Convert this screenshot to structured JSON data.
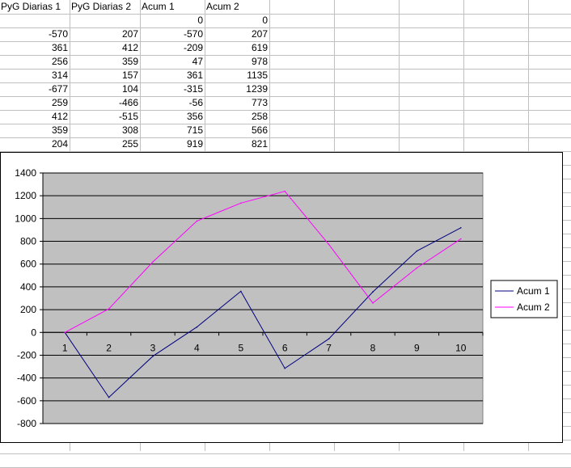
{
  "sheet": {
    "headers": [
      "PyG Diarias 1",
      "PyG Diarias 2",
      "Acum 1",
      "Acum 2"
    ],
    "rows": [
      [
        "",
        "",
        "0",
        "0"
      ],
      [
        "-570",
        "207",
        "-570",
        "207"
      ],
      [
        "361",
        "412",
        "-209",
        "619"
      ],
      [
        "256",
        "359",
        "47",
        "978"
      ],
      [
        "314",
        "157",
        "361",
        "1135"
      ],
      [
        "-677",
        "104",
        "-315",
        "1239"
      ],
      [
        "259",
        "-466",
        "-56",
        "773"
      ],
      [
        "412",
        "-515",
        "356",
        "258"
      ],
      [
        "359",
        "308",
        "715",
        "566"
      ],
      [
        "204",
        "255",
        "919",
        "821"
      ]
    ]
  },
  "chart_data": {
    "type": "line",
    "categories": [
      "1",
      "2",
      "3",
      "4",
      "5",
      "6",
      "7",
      "8",
      "9",
      "10"
    ],
    "series": [
      {
        "name": "Acum 1",
        "color": "#000080",
        "values": [
          0,
          -570,
          -209,
          47,
          361,
          -315,
          -56,
          356,
          715,
          919
        ]
      },
      {
        "name": "Acum 2",
        "color": "#ff00ff",
        "values": [
          0,
          207,
          619,
          978,
          1135,
          1239,
          773,
          258,
          566,
          821
        ]
      }
    ],
    "ylim": [
      -800,
      1400
    ],
    "ytick_step": 200,
    "yticks": [
      "1400",
      "1200",
      "1000",
      "800",
      "600",
      "400",
      "200",
      "0",
      "-200",
      "-400",
      "-600",
      "-800"
    ],
    "plot_background": "#c0c0c0",
    "grid": true,
    "legend_position": "right",
    "title": "",
    "xlabel": "",
    "ylabel": ""
  }
}
